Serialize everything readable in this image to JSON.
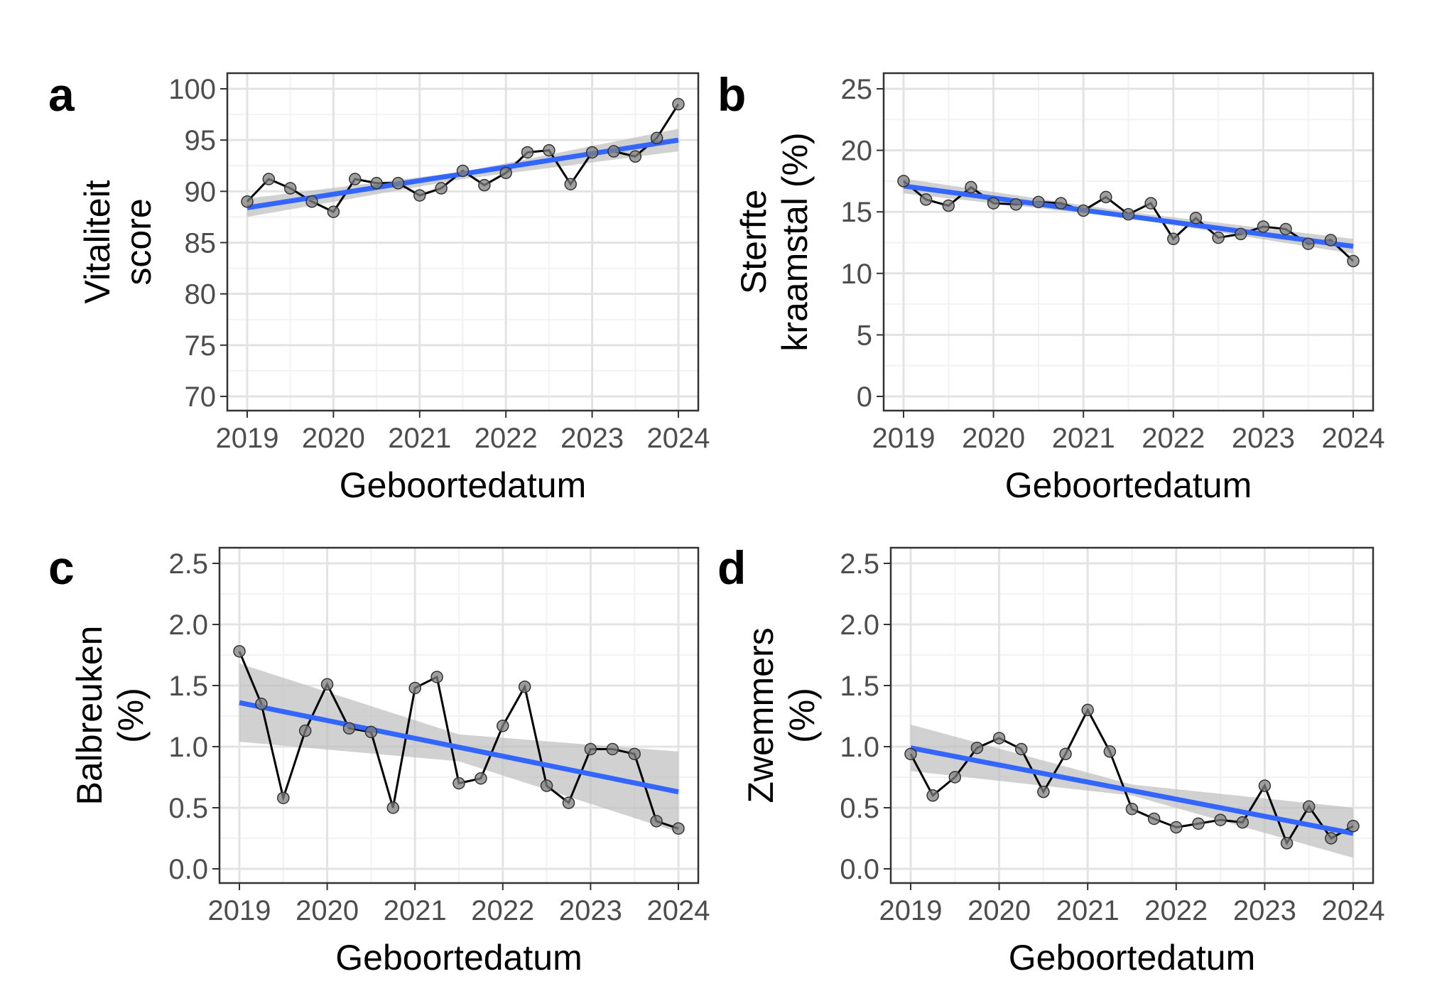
{
  "colors": {
    "grid_major": "#e3e3e3",
    "grid_minor": "#f2f2f2",
    "border": "#333333",
    "series_line": "#000000",
    "point": "#7f7f7f",
    "trend": "#3366ff",
    "ribbon": "#bdbdbd"
  },
  "chart_data": [
    {
      "panel": "a",
      "type": "line",
      "title": "",
      "xlabel": "Geboortedatum",
      "ylabel_lines": [
        "Vitaliteit",
        "score"
      ],
      "xlim": [
        2019,
        2024
      ],
      "xticks": [
        "2019",
        "2020",
        "2021",
        "2022",
        "2023",
        "2024"
      ],
      "ylim": [
        70,
        100
      ],
      "yticks": [
        "70",
        "75",
        "80",
        "85",
        "90",
        "95",
        "100"
      ],
      "x": [
        2019.0,
        2019.25,
        2019.5,
        2019.75,
        2020.0,
        2020.25,
        2020.5,
        2020.75,
        2021.0,
        2021.25,
        2021.5,
        2021.75,
        2022.0,
        2022.25,
        2022.5,
        2022.75,
        2023.0,
        2023.25,
        2023.5,
        2023.75,
        2024.0
      ],
      "series": [
        {
          "name": "observed",
          "values": [
            89.0,
            91.2,
            90.3,
            89.0,
            88.0,
            91.2,
            90.8,
            90.8,
            89.6,
            90.3,
            92.0,
            90.6,
            91.8,
            93.8,
            94.0,
            90.7,
            93.8,
            93.9,
            93.4,
            95.2,
            98.5
          ]
        }
      ],
      "trend": {
        "x": [
          2019,
          2024
        ],
        "y": [
          88.4,
          95.0
        ]
      },
      "ribbon": {
        "x": [
          2019,
          2021.5,
          2024
        ],
        "lower": [
          87.5,
          91.2,
          93.9
        ],
        "upper": [
          89.3,
          91.9,
          96.1
        ]
      }
    },
    {
      "panel": "b",
      "type": "line",
      "title": "",
      "xlabel": "Geboortedatum",
      "ylabel_lines": [
        "Sterfte",
        "kraamstal (%)"
      ],
      "xlim": [
        2019,
        2024
      ],
      "xticks": [
        "2019",
        "2020",
        "2021",
        "2022",
        "2023",
        "2024"
      ],
      "ylim": [
        0,
        25
      ],
      "yticks": [
        "0",
        "5",
        "10",
        "15",
        "20",
        "25"
      ],
      "x": [
        2019.0,
        2019.25,
        2019.5,
        2019.75,
        2020.0,
        2020.25,
        2020.5,
        2020.75,
        2021.0,
        2021.25,
        2021.5,
        2021.75,
        2022.0,
        2022.25,
        2022.5,
        2022.75,
        2023.0,
        2023.25,
        2023.5,
        2023.75,
        2024.0
      ],
      "series": [
        {
          "name": "observed",
          "values": [
            17.5,
            16.0,
            15.5,
            17.0,
            15.7,
            15.6,
            15.8,
            15.7,
            15.1,
            16.2,
            14.8,
            15.7,
            12.8,
            14.5,
            12.9,
            13.2,
            13.8,
            13.6,
            12.4,
            12.7,
            11.0
          ]
        }
      ],
      "trend": {
        "x": [
          2019,
          2024
        ],
        "y": [
          17.1,
          12.2
        ]
      },
      "ribbon": {
        "x": [
          2019,
          2021.5,
          2024
        ],
        "lower": [
          16.5,
          14.5,
          11.6
        ],
        "upper": [
          17.7,
          15.0,
          12.8
        ]
      }
    },
    {
      "panel": "c",
      "type": "line",
      "title": "",
      "xlabel": "Geboortedatum",
      "ylabel_lines": [
        "Balbreuken",
        "(%)"
      ],
      "xlim": [
        2019,
        2024
      ],
      "xticks": [
        "2019",
        "2020",
        "2021",
        "2022",
        "2023",
        "2024"
      ],
      "ylim": [
        0.0,
        2.5
      ],
      "yticks": [
        "0.0",
        "0.5",
        "1.0",
        "1.5",
        "2.0",
        "2.5"
      ],
      "x": [
        2019.0,
        2019.25,
        2019.5,
        2019.75,
        2020.0,
        2020.25,
        2020.5,
        2020.75,
        2021.0,
        2021.25,
        2021.5,
        2021.75,
        2022.0,
        2022.25,
        2022.5,
        2022.75,
        2023.0,
        2023.25,
        2023.5,
        2023.75,
        2024.0
      ],
      "series": [
        {
          "name": "observed",
          "values": [
            1.78,
            1.35,
            0.58,
            1.13,
            1.51,
            1.15,
            1.12,
            0.5,
            1.48,
            1.57,
            0.7,
            0.74,
            1.17,
            1.49,
            0.68,
            0.54,
            0.98,
            0.98,
            0.94,
            0.39,
            0.33
          ]
        }
      ],
      "trend": {
        "x": [
          2019,
          2024
        ],
        "y": [
          1.36,
          0.63
        ]
      },
      "ribbon": {
        "x": [
          2019,
          2021.5,
          2024
        ],
        "lower": [
          1.04,
          0.88,
          0.3
        ],
        "upper": [
          1.68,
          1.1,
          0.96
        ]
      }
    },
    {
      "panel": "d",
      "type": "line",
      "title": "",
      "xlabel": "Geboortedatum",
      "ylabel_lines": [
        "Zwemmers",
        "(%)"
      ],
      "xlim": [
        2019,
        2024
      ],
      "xticks": [
        "2019",
        "2020",
        "2021",
        "2022",
        "2023",
        "2024"
      ],
      "ylim": [
        0.0,
        2.5
      ],
      "yticks": [
        "0.0",
        "0.5",
        "1.0",
        "1.5",
        "2.0",
        "2.5"
      ],
      "x": [
        2019.0,
        2019.25,
        2019.5,
        2019.75,
        2020.0,
        2020.25,
        2020.5,
        2020.75,
        2021.0,
        2021.25,
        2021.5,
        2021.75,
        2022.0,
        2022.25,
        2022.5,
        2022.75,
        2023.0,
        2023.25,
        2023.5,
        2023.75,
        2024.0
      ],
      "series": [
        {
          "name": "observed",
          "values": [
            0.94,
            0.6,
            0.75,
            0.99,
            1.07,
            0.98,
            0.63,
            0.94,
            1.3,
            0.96,
            0.49,
            0.41,
            0.34,
            0.37,
            0.4,
            0.38,
            0.68,
            0.21,
            0.51,
            0.25,
            0.35
          ]
        }
      ],
      "trend": {
        "x": [
          2019,
          2024
        ],
        "y": [
          0.99,
          0.29
        ]
      },
      "ribbon": {
        "x": [
          2019,
          2021.5,
          2024
        ],
        "lower": [
          0.8,
          0.6,
          0.09
        ],
        "upper": [
          1.18,
          0.69,
          0.5
        ]
      }
    }
  ]
}
